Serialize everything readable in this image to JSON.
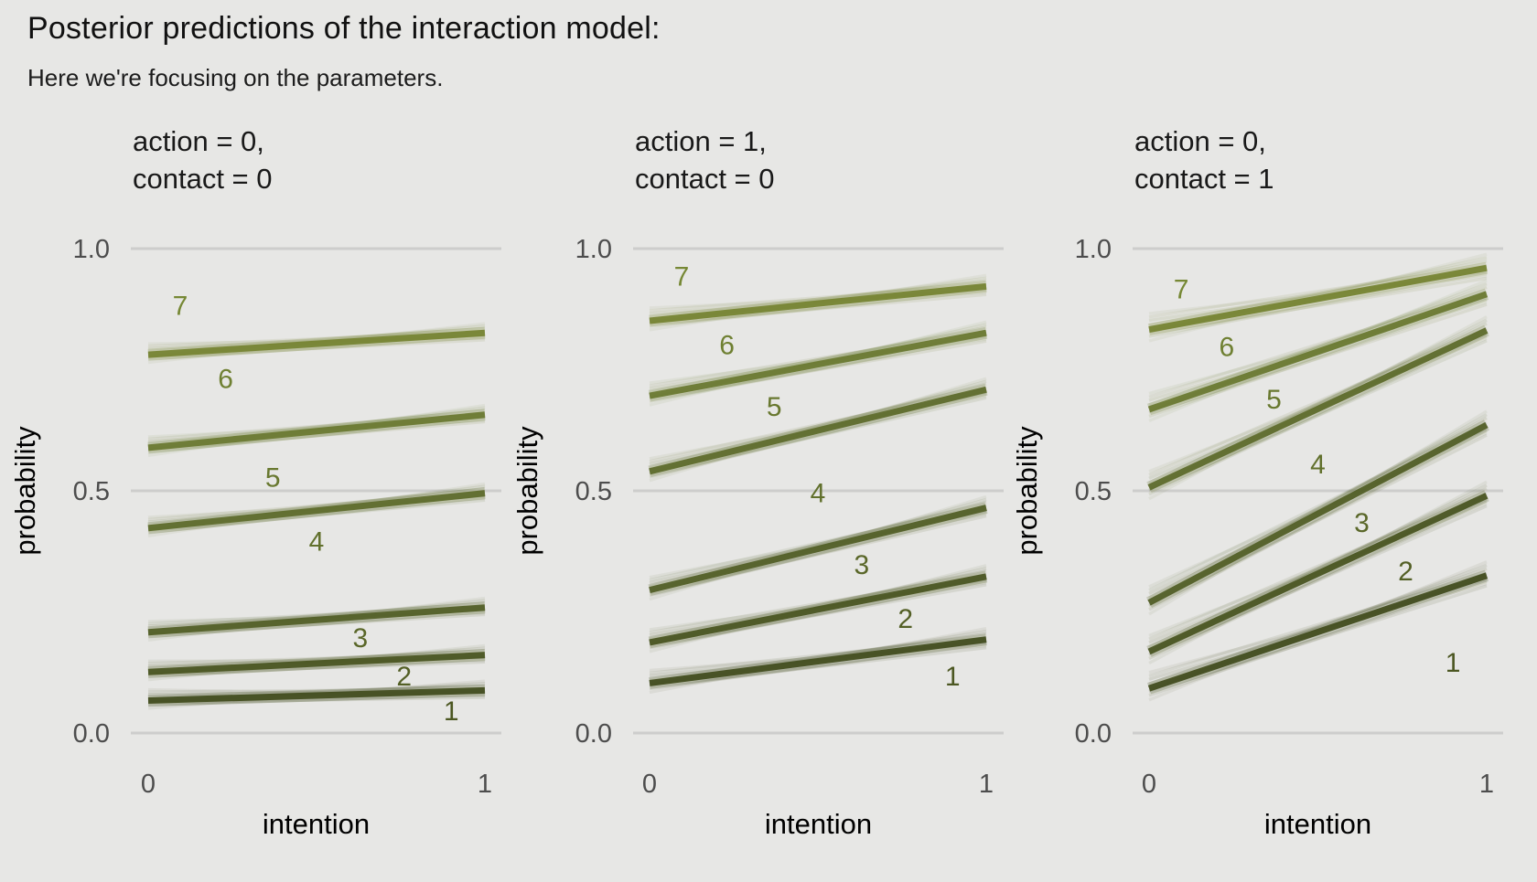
{
  "title": "Posterior predictions of the interaction model:",
  "subtitle": "Here we're focusing on the parameters.",
  "colors": {
    "background": "#e7e7e5",
    "gridline": "#cdcdcc",
    "tick_text": "#4d4d4d",
    "axis_title_text": "#000000",
    "facet_title_text": "#191919",
    "line_palette_k1_to_k6": [
      "#424d1f",
      "#4a5522",
      "#525f27",
      "#5e6c2c",
      "#6a7931",
      "#768433"
    ],
    "label_palette_k1_to_k7": [
      "#4c5722",
      "#535f25",
      "#5a6729",
      "#61702c",
      "#68782f",
      "#6f8032",
      "#768834"
    ],
    "bundle_highlight": "#dcddcb"
  },
  "chart_data": {
    "type": "line",
    "title": "Posterior predictions of the interaction model:",
    "subtitle": "Here we're focusing on the parameters.",
    "xlabel": "intention",
    "ylabel": "probability",
    "x": [
      0,
      1
    ],
    "xlim": [
      0,
      1
    ],
    "ylim": [
      0,
      1
    ],
    "xticks": [
      "0",
      "1"
    ],
    "yticks": [
      "0.0",
      "0.5",
      "1.0"
    ],
    "ytick_values": [
      0.0,
      0.5,
      1.0
    ],
    "grid": "horizontal-only",
    "legend": "none",
    "description": "Cumulative probability boundary lines Pr(y<=k), k=1..6, drawn as bundles of posterior draws; numerals 1-7 mark the seven response-category regions between boundaries.",
    "facets": [
      {
        "label_line1": "action = 0,",
        "label_line2": "contact = 0",
        "series": [
          {
            "name": "boundary-1",
            "y": [
              0.067,
              0.088
            ]
          },
          {
            "name": "boundary-2",
            "y": [
              0.126,
              0.161
            ]
          },
          {
            "name": "boundary-3",
            "y": [
              0.208,
              0.259
            ]
          },
          {
            "name": "boundary-4",
            "y": [
              0.423,
              0.495
            ]
          },
          {
            "name": "boundary-5",
            "y": [
              0.589,
              0.657
            ]
          },
          {
            "name": "boundary-6",
            "y": [
              0.781,
              0.826
            ]
          }
        ],
        "category_labels": [
          {
            "text": "1",
            "x": 0.9,
            "y": 0.045
          },
          {
            "text": "2",
            "x": 0.76,
            "y": 0.117
          },
          {
            "text": "3",
            "x": 0.63,
            "y": 0.196
          },
          {
            "text": "4",
            "x": 0.5,
            "y": 0.395
          },
          {
            "text": "5",
            "x": 0.37,
            "y": 0.527
          },
          {
            "text": "6",
            "x": 0.23,
            "y": 0.731
          },
          {
            "text": "7",
            "x": 0.095,
            "y": 0.882
          }
        ]
      },
      {
        "label_line1": "action = 1,",
        "label_line2": "contact = 0",
        "series": [
          {
            "name": "boundary-1",
            "y": [
              0.103,
              0.193
            ]
          },
          {
            "name": "boundary-2",
            "y": [
              0.187,
              0.323
            ]
          },
          {
            "name": "boundary-3",
            "y": [
              0.295,
              0.465
            ]
          },
          {
            "name": "boundary-4",
            "y": [
              0.54,
              0.709
            ]
          },
          {
            "name": "boundary-5",
            "y": [
              0.696,
              0.826
            ]
          },
          {
            "name": "boundary-6",
            "y": [
              0.851,
              0.922
            ]
          }
        ],
        "category_labels": [
          {
            "text": "1",
            "x": 0.9,
            "y": 0.117
          },
          {
            "text": "2",
            "x": 0.76,
            "y": 0.236
          },
          {
            "text": "3",
            "x": 0.63,
            "y": 0.347
          },
          {
            "text": "4",
            "x": 0.5,
            "y": 0.495
          },
          {
            "text": "5",
            "x": 0.37,
            "y": 0.674
          },
          {
            "text": "6",
            "x": 0.23,
            "y": 0.801
          },
          {
            "text": "7",
            "x": 0.095,
            "y": 0.942
          }
        ]
      },
      {
        "label_line1": "action = 0,",
        "label_line2": "contact = 1",
        "series": [
          {
            "name": "boundary-1",
            "y": [
              0.092,
              0.325
            ]
          },
          {
            "name": "boundary-2",
            "y": [
              0.168,
              0.49
            ]
          },
          {
            "name": "boundary-3",
            "y": [
              0.269,
              0.636
            ]
          },
          {
            "name": "boundary-4",
            "y": [
              0.507,
              0.831
            ]
          },
          {
            "name": "boundary-5",
            "y": [
              0.668,
              0.906
            ]
          },
          {
            "name": "boundary-6",
            "y": [
              0.833,
              0.96
            ]
          }
        ],
        "category_labels": [
          {
            "text": "1",
            "x": 0.9,
            "y": 0.145
          },
          {
            "text": "2",
            "x": 0.76,
            "y": 0.334
          },
          {
            "text": "3",
            "x": 0.63,
            "y": 0.434
          },
          {
            "text": "4",
            "x": 0.5,
            "y": 0.555
          },
          {
            "text": "5",
            "x": 0.37,
            "y": 0.689
          },
          {
            "text": "6",
            "x": 0.23,
            "y": 0.797
          },
          {
            "text": "7",
            "x": 0.095,
            "y": 0.916
          }
        ]
      }
    ]
  }
}
